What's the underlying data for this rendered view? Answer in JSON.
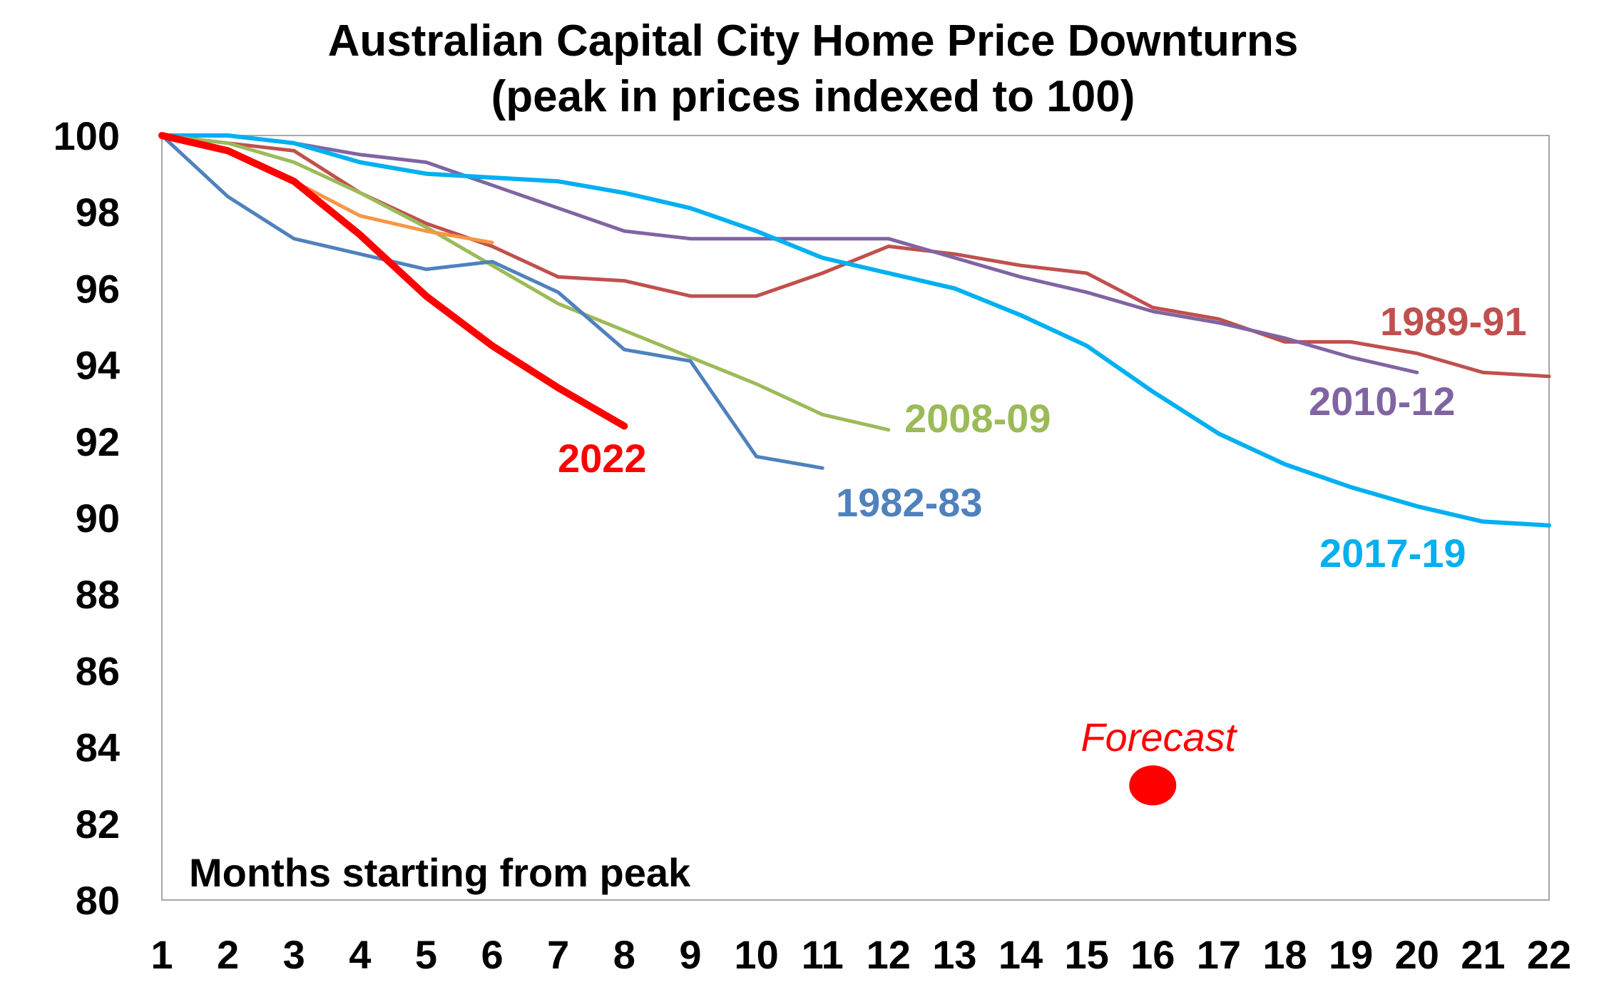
{
  "chart_data": {
    "type": "line",
    "title": "Australian Capital City Home Price Downturns",
    "subtitle": "(peak in prices indexed to 100)",
    "xlabel": "Months starting from peak",
    "ylabel": "",
    "xlim": [
      1,
      22
    ],
    "ylim": [
      80,
      100
    ],
    "x_ticks": [
      "1",
      "2",
      "3",
      "4",
      "5",
      "6",
      "7",
      "8",
      "9",
      "10",
      "11",
      "12",
      "13",
      "14",
      "15",
      "16",
      "17",
      "18",
      "19",
      "20",
      "21",
      "22"
    ],
    "y_ticks": [
      "80",
      "82",
      "84",
      "86",
      "88",
      "90",
      "92",
      "94",
      "96",
      "98",
      "100"
    ],
    "grid": false,
    "series": [
      {
        "name": "1989-91",
        "label": "1989-91",
        "color": "#C0504D",
        "width": 5,
        "show_label": true,
        "x": [
          1,
          2,
          3,
          4,
          5,
          6,
          7,
          8,
          9,
          10,
          11,
          12,
          13,
          14,
          15,
          16,
          17,
          18,
          19,
          20,
          21,
          22
        ],
        "y": [
          100,
          99.8,
          99.6,
          98.5,
          97.7,
          97.1,
          96.3,
          96.2,
          95.8,
          95.8,
          96.4,
          97.1,
          96.9,
          96.6,
          96.4,
          95.5,
          95.2,
          94.6,
          94.6,
          94.3,
          93.8,
          93.7
        ]
      },
      {
        "name": "2010-12",
        "label": "2010-12",
        "color": "#8064A2",
        "width": 5,
        "show_label": true,
        "x": [
          1,
          2,
          3,
          4,
          5,
          6,
          7,
          8,
          9,
          10,
          11,
          12,
          13,
          14,
          15,
          16,
          17,
          18,
          19,
          20
        ],
        "y": [
          100,
          100,
          99.8,
          99.5,
          99.3,
          98.7,
          98.1,
          97.5,
          97.3,
          97.3,
          97.3,
          97.3,
          96.8,
          96.3,
          95.9,
          95.4,
          95.1,
          94.7,
          94.2,
          93.8
        ]
      },
      {
        "name": "2017-19",
        "label": "2017-19",
        "color": "#00B0F0",
        "width": 6,
        "show_label": true,
        "x": [
          1,
          2,
          3,
          4,
          5,
          6,
          7,
          8,
          9,
          10,
          11,
          12,
          13,
          14,
          15,
          16,
          17,
          18,
          19,
          20,
          21,
          22
        ],
        "y": [
          100,
          100,
          99.8,
          99.3,
          99.0,
          98.9,
          98.8,
          98.5,
          98.1,
          97.5,
          96.8,
          96.4,
          96.0,
          95.3,
          94.5,
          93.3,
          92.2,
          91.4,
          90.8,
          90.3,
          89.9,
          89.8
        ]
      },
      {
        "name": "2008-09",
        "label": "2008-09",
        "color": "#9BBB59",
        "width": 5,
        "show_label": true,
        "x": [
          1,
          2,
          3,
          4,
          5,
          6,
          7,
          8,
          9,
          10,
          11,
          12
        ],
        "y": [
          100,
          99.8,
          99.3,
          98.5,
          97.6,
          96.6,
          95.6,
          94.9,
          94.2,
          93.5,
          92.7,
          92.3
        ]
      },
      {
        "name": "1982-83",
        "label": "1982-83",
        "color": "#4F81BD",
        "width": 5,
        "show_label": true,
        "x": [
          1,
          2,
          3,
          4,
          5,
          6,
          7,
          8,
          9,
          10,
          11
        ],
        "y": [
          100,
          98.4,
          97.3,
          96.9,
          96.5,
          96.7,
          95.9,
          94.4,
          94.1,
          91.6,
          91.3
        ]
      },
      {
        "name": "unlabelled orange series",
        "label": "",
        "color": "#F79646",
        "width": 5,
        "show_label": false,
        "x": [
          1,
          2,
          3,
          4,
          5,
          6
        ],
        "y": [
          100,
          99.6,
          98.8,
          97.9,
          97.5,
          97.2
        ]
      },
      {
        "name": "2022",
        "label": "2022",
        "color": "#FF0000",
        "width": 10,
        "show_label": true,
        "x": [
          1,
          2,
          3,
          4,
          5,
          6,
          7,
          8
        ],
        "y": [
          100,
          99.6,
          98.8,
          97.4,
          95.8,
          94.5,
          93.4,
          92.4
        ]
      }
    ],
    "annotations": [
      {
        "text": "Forecast",
        "x": 16,
        "y": 83,
        "color": "#FF0000",
        "marker": "dot"
      }
    ]
  }
}
